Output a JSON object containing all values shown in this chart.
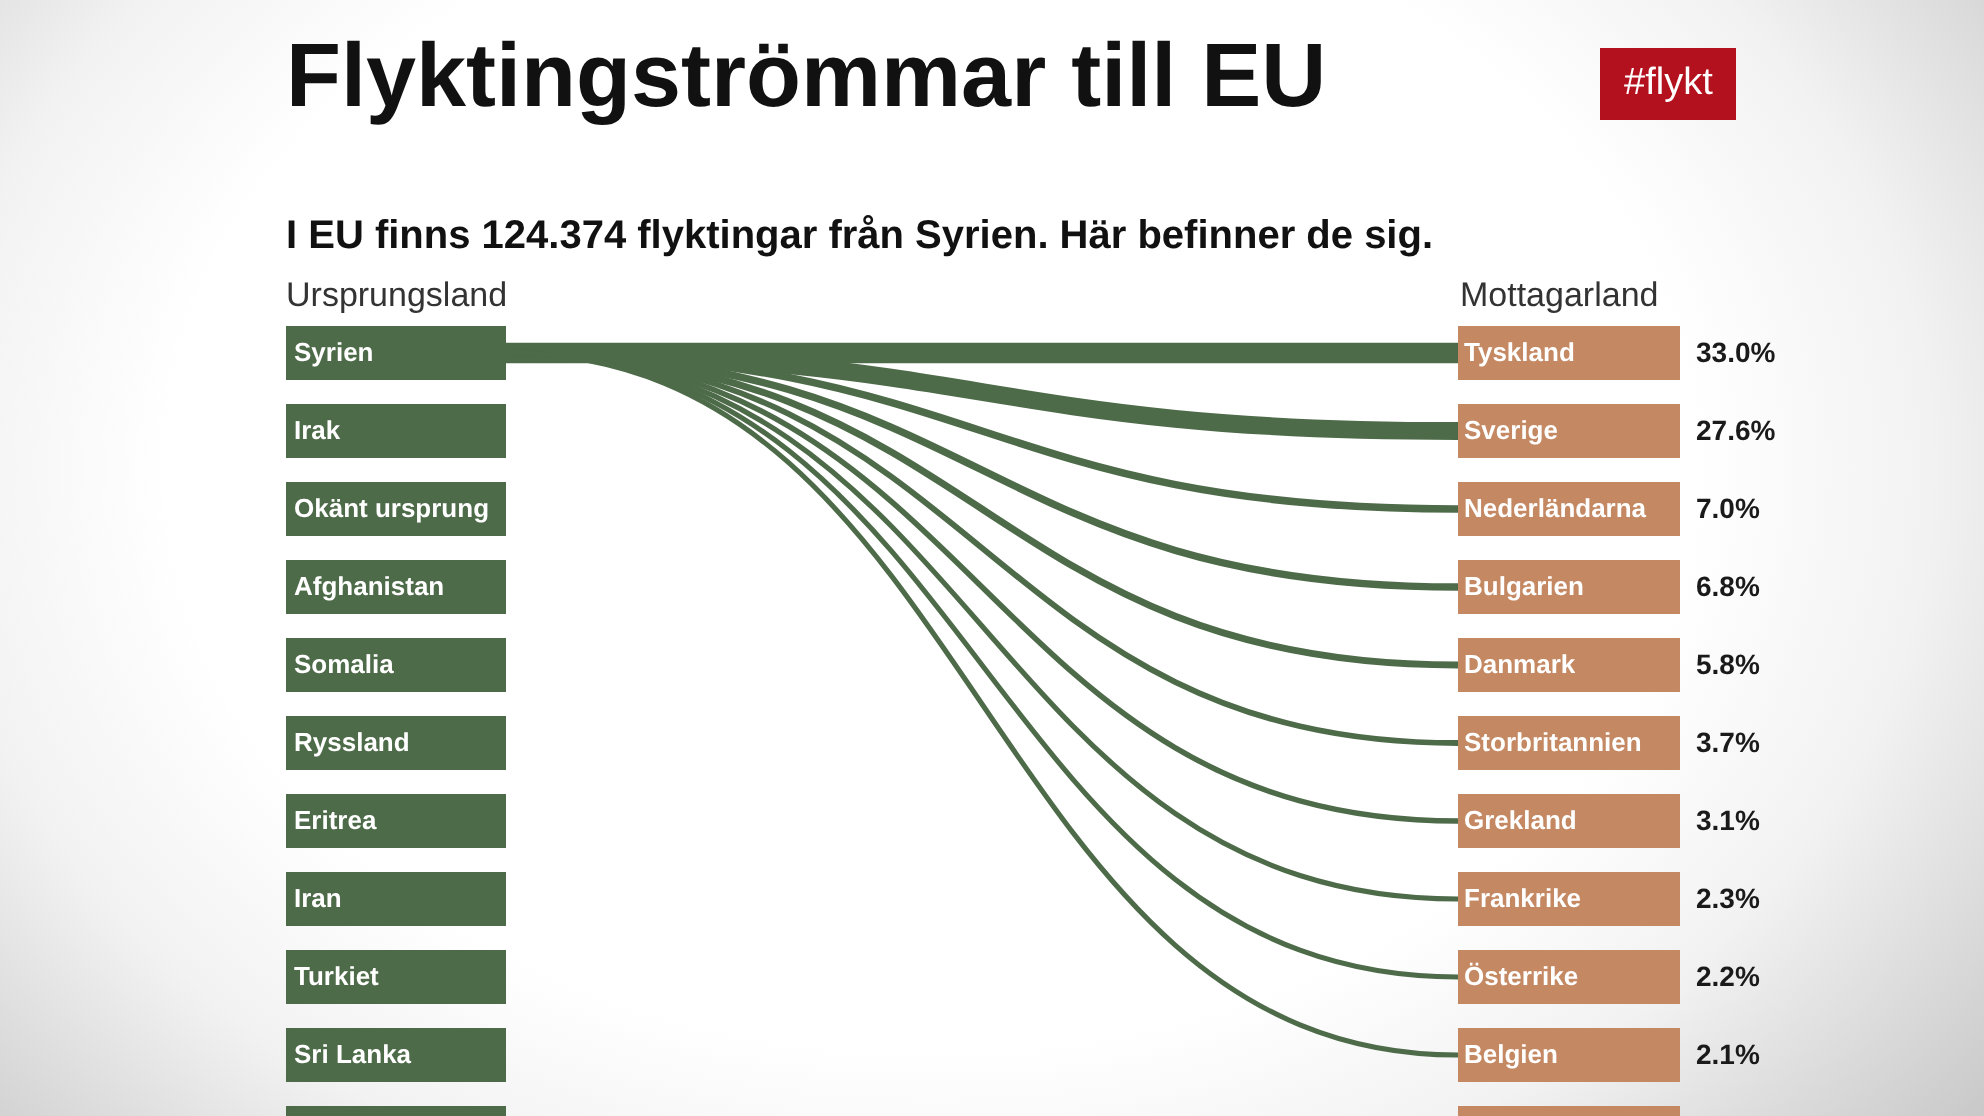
{
  "chart_data": {
    "type": "other",
    "title": "Flyktingströmmar till EU",
    "subtitle": "I EU finns 124.374 flyktingar från Syrien. Här befinner de sig.",
    "ylabel": "Ursprungsland",
    "y2label": "Mottagarland",
    "y_categories": [
      "Syrien",
      "Irak",
      "Okänt ursprung",
      "Afghanistan",
      "Somalia",
      "Ryssland",
      "Eritrea",
      "Iran",
      "Turkiet",
      "Sri Lanka",
      null
    ],
    "categories": [
      "Tyskland",
      "Sverige",
      "Nederländarna",
      "Bulgarien",
      "Danmark",
      "Storbritannien",
      "Grekland",
      "Frankrike",
      "Österrike",
      "Belgien",
      null
    ],
    "series": [
      {
        "color": "#4e6b49",
        "values": [
          33.0,
          27.6,
          7.0,
          6.8,
          5.8,
          3.7,
          3.1,
          2.3,
          2.2,
          2.1,
          null
        ],
        "value_labels": [
          "33.0%",
          "27.6%",
          "7.0%",
          "6.8%",
          "5.8%",
          "3.7%",
          "3.1%",
          "2.3%",
          "2.2%",
          "2.1%",
          null
        ]
      }
    ],
    "colors": [
      "#c48963",
      "#c48963",
      "#c48963",
      "#c48963",
      "#c48963",
      "#c48963",
      "#c48963",
      "#c48963",
      "#c48963",
      "#c48963",
      "#c48963"
    ],
    "annotations": [
      "#flykt"
    ]
  }
}
